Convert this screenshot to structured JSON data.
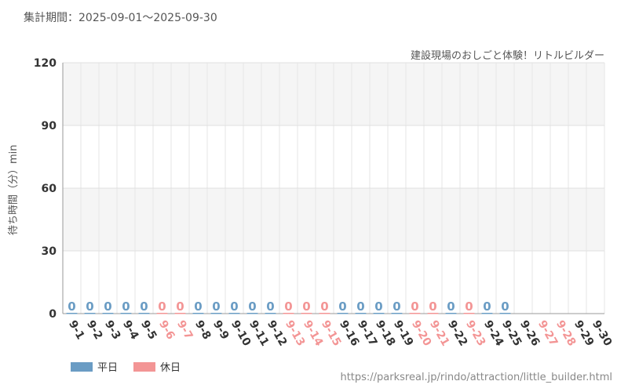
{
  "header": {
    "period": "集計期間：2025-09-01〜2025-09-30",
    "attraction": "建設現場のおしごと体験！リトルビルダー"
  },
  "legend": {
    "weekday": "平日",
    "holiday": "休日"
  },
  "footer": {
    "url": "https://parksreal.jp/rindo/attraction/little_builder.html"
  },
  "colors": {
    "weekday": "#6a9cc4",
    "holiday": "#f39595"
  },
  "chart_data": {
    "type": "bar",
    "ylabel": "待ち時間（分）min",
    "ylim": [
      0,
      120
    ],
    "yticks": [
      0,
      30,
      60,
      90,
      120
    ],
    "categories": [
      "9-1",
      "9-2",
      "9-3",
      "9-4",
      "9-5",
      "9-6",
      "9-7",
      "9-8",
      "9-9",
      "9-10",
      "9-11",
      "9-12",
      "9-13",
      "9-14",
      "9-15",
      "9-16",
      "9-17",
      "9-18",
      "9-19",
      "9-20",
      "9-21",
      "9-22",
      "9-23",
      "9-24",
      "9-25",
      "9-26",
      "9-27",
      "9-28",
      "9-29",
      "9-30"
    ],
    "day_type": [
      "weekday",
      "weekday",
      "weekday",
      "weekday",
      "weekday",
      "holiday",
      "holiday",
      "weekday",
      "weekday",
      "weekday",
      "weekday",
      "weekday",
      "holiday",
      "holiday",
      "holiday",
      "weekday",
      "weekday",
      "weekday",
      "weekday",
      "holiday",
      "holiday",
      "weekday",
      "holiday",
      "weekday",
      "weekday",
      "weekday",
      "holiday",
      "holiday",
      "weekday",
      "weekday"
    ],
    "values": [
      0,
      0,
      0,
      0,
      0,
      0,
      0,
      0,
      0,
      0,
      0,
      0,
      0,
      0,
      0,
      0,
      0,
      0,
      0,
      0,
      0,
      0,
      0,
      0,
      0,
      null,
      null,
      null,
      null,
      null
    ],
    "data_labels": [
      "0",
      "0",
      "0",
      "0",
      "0",
      "0",
      "0",
      "0",
      "0",
      "0",
      "0",
      "0",
      "0",
      "0",
      "0",
      "0",
      "0",
      "0",
      "0",
      "0",
      "0",
      "0",
      "0",
      "0",
      "0",
      "",
      "",
      "",
      "",
      ""
    ]
  }
}
